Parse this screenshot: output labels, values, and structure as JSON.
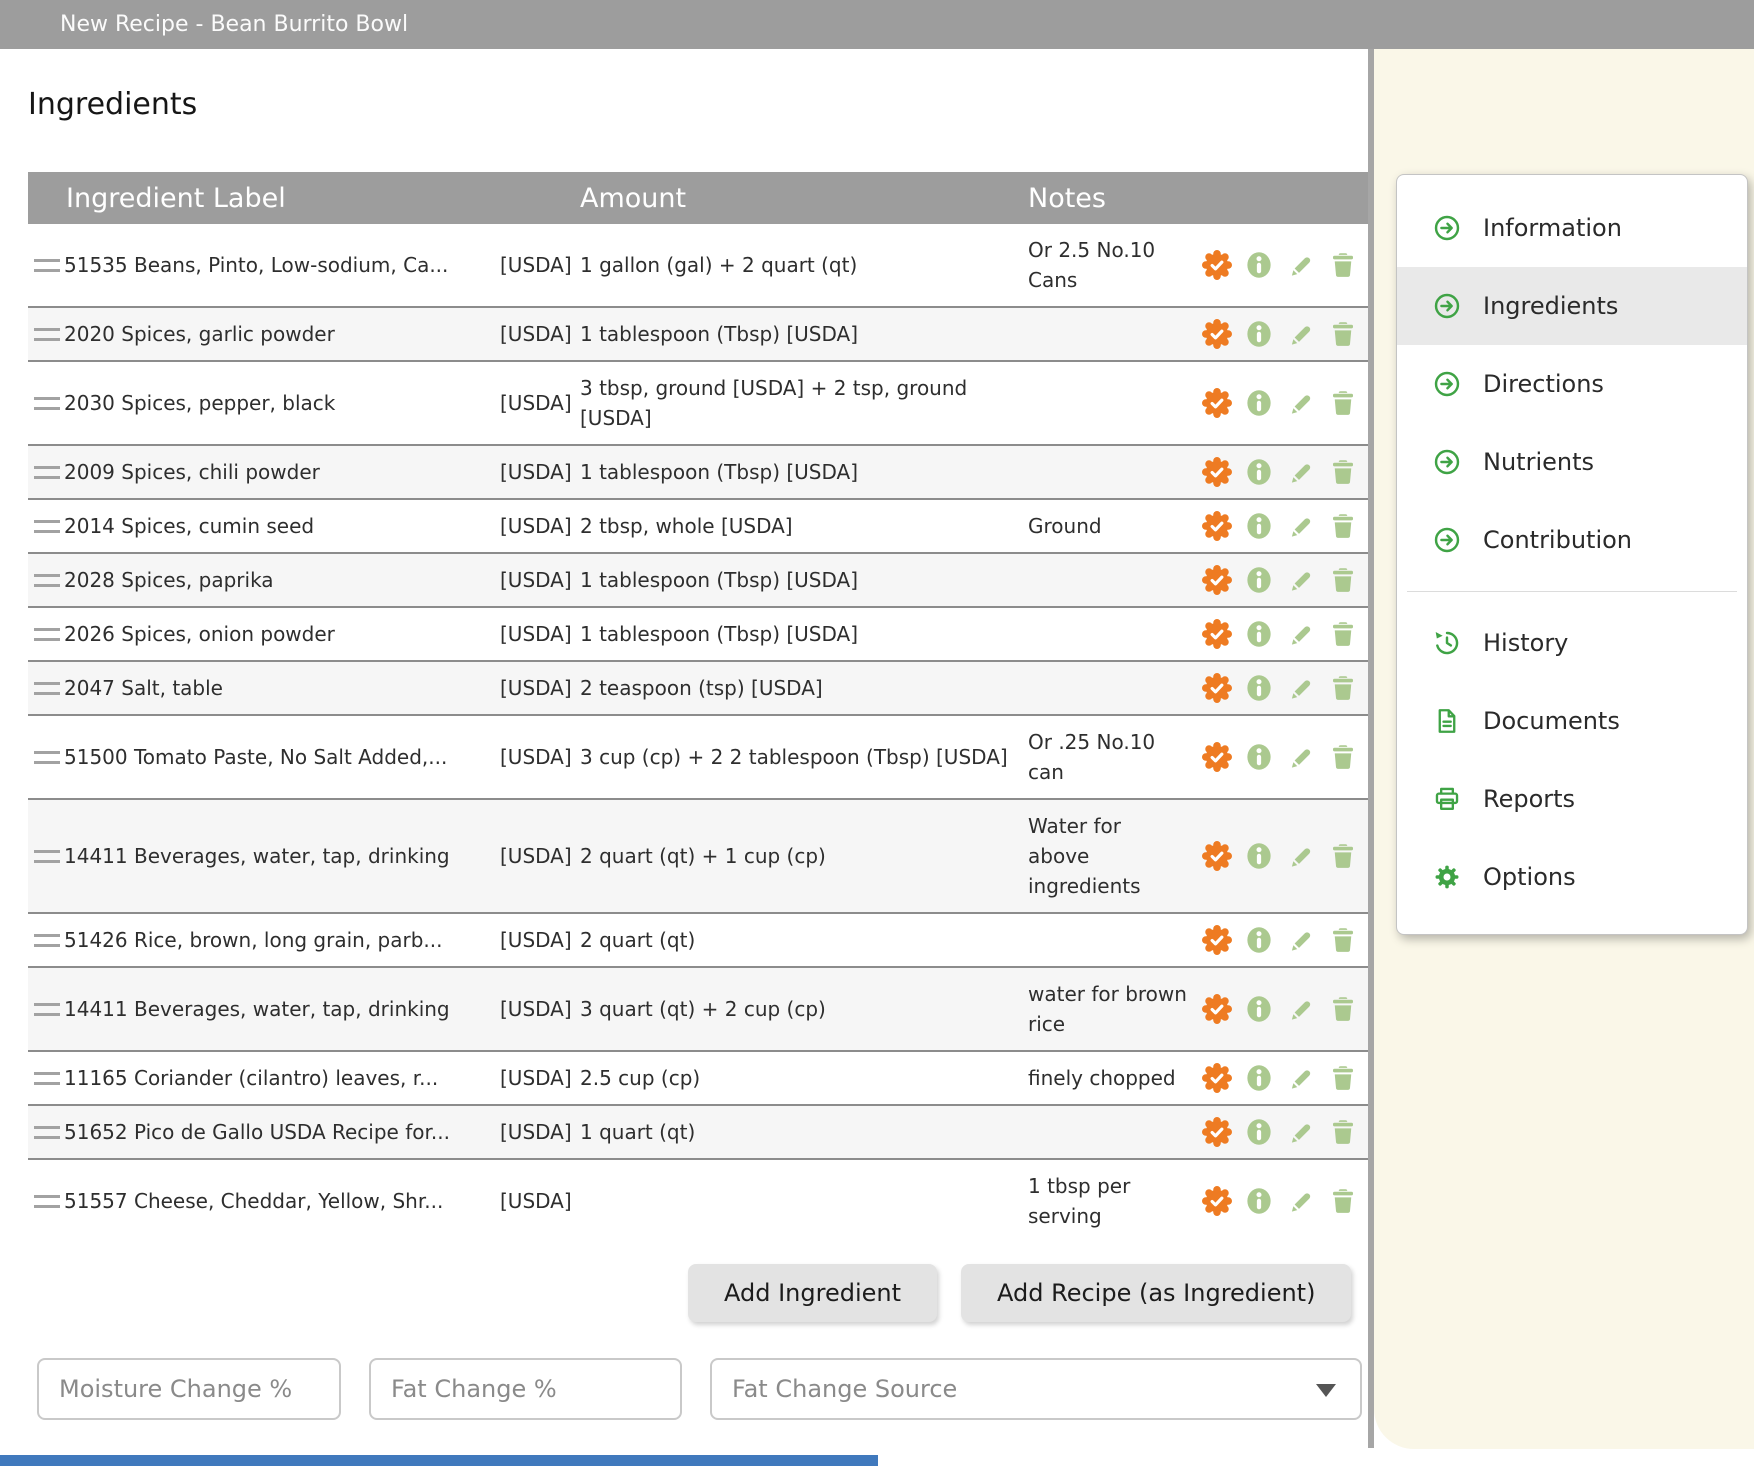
{
  "title_bar": {
    "title": "New Recipe - Bean Burrito Bowl"
  },
  "page": {
    "heading": "Ingredients"
  },
  "table": {
    "columns": [
      "Ingredient Label",
      "Amount",
      "Notes"
    ],
    "row_actions": [
      "verified-badge",
      "info",
      "edit",
      "delete"
    ],
    "rows": [
      {
        "label": "51535 Beans, Pinto, Low-sodium, Ca...",
        "source": "[USDA]",
        "amount": "1 gallon (gal) + 2 quart (qt)",
        "notes": "Or 2.5 No.10 Cans"
      },
      {
        "label": "2020 Spices, garlic powder",
        "source": "[USDA]",
        "amount": "1 tablespoon (Tbsp) [USDA]",
        "notes": ""
      },
      {
        "label": "2030 Spices, pepper, black",
        "source": "[USDA]",
        "amount": "3 tbsp, ground [USDA] + 2 tsp, ground [USDA]",
        "notes": ""
      },
      {
        "label": "2009 Spices, chili powder",
        "source": "[USDA]",
        "amount": "1 tablespoon (Tbsp) [USDA]",
        "notes": ""
      },
      {
        "label": "2014 Spices, cumin seed",
        "source": "[USDA]",
        "amount": "2 tbsp, whole [USDA]",
        "notes": "Ground"
      },
      {
        "label": "2028 Spices, paprika",
        "source": "[USDA]",
        "amount": "1 tablespoon (Tbsp) [USDA]",
        "notes": ""
      },
      {
        "label": "2026 Spices, onion powder",
        "source": "[USDA]",
        "amount": "1 tablespoon (Tbsp) [USDA]",
        "notes": ""
      },
      {
        "label": "2047 Salt, table",
        "source": "[USDA]",
        "amount": "2 teaspoon (tsp) [USDA]",
        "notes": ""
      },
      {
        "label": "51500 Tomato Paste, No Salt Added,...",
        "source": "[USDA]",
        "amount": "3 cup (cp) + 2 2 tablespoon (Tbsp) [USDA]",
        "notes": "Or .25 No.10 can"
      },
      {
        "label": "14411 Beverages, water, tap, drinking",
        "source": "[USDA]",
        "amount": "2 quart (qt) + 1 cup (cp)",
        "notes": "Water for above ingredients"
      },
      {
        "label": "51426 Rice, brown, long grain, parb...",
        "source": "[USDA]",
        "amount": "2 quart (qt)",
        "notes": ""
      },
      {
        "label": "14411 Beverages, water, tap, drinking",
        "source": "[USDA]",
        "amount": "3 quart (qt) + 2 cup (cp)",
        "notes": "water for brown rice"
      },
      {
        "label": "11165 Coriander (cilantro) leaves, r...",
        "source": "[USDA]",
        "amount": "2.5 cup (cp)",
        "notes": "finely chopped"
      },
      {
        "label": "51652 Pico de Gallo USDA Recipe for...",
        "source": "[USDA]",
        "amount": "1 quart (qt)",
        "notes": ""
      },
      {
        "label": "51557 Cheese, Cheddar, Yellow, Shr...",
        "source": "[USDA]",
        "amount": "",
        "notes": "1 tbsp per serving"
      }
    ]
  },
  "buttons": {
    "add_ingredient": "Add Ingredient",
    "add_recipe": "Add Recipe (as Ingredient)"
  },
  "fields": {
    "moisture_change": {
      "value": "",
      "placeholder": "Moisture Change %"
    },
    "fat_change": {
      "value": "",
      "placeholder": "Fat Change %"
    },
    "fat_change_source": {
      "value": "",
      "placeholder": "Fat Change Source"
    }
  },
  "sidebar": {
    "items": [
      {
        "label": "Information",
        "icon": "arrow-circle",
        "active": false
      },
      {
        "label": "Ingredients",
        "icon": "arrow-circle",
        "active": true
      },
      {
        "label": "Directions",
        "icon": "arrow-circle",
        "active": false
      },
      {
        "label": "Nutrients",
        "icon": "arrow-circle",
        "active": false
      },
      {
        "label": "Contribution",
        "icon": "arrow-circle",
        "active": false
      },
      {
        "divider": true
      },
      {
        "label": "History",
        "icon": "history",
        "active": false
      },
      {
        "label": "Documents",
        "icon": "document",
        "active": false
      },
      {
        "label": "Reports",
        "icon": "printer",
        "active": false
      },
      {
        "label": "Options",
        "icon": "gear",
        "active": false
      }
    ]
  },
  "colors": {
    "header_gray": "#9d9d9d",
    "accent_green": "#3fa345",
    "action_green": "#abc98f",
    "badge_orange": "#ee7b22",
    "cream_background": "#faf7e8",
    "scrollbar_blue": "#4079bd"
  }
}
